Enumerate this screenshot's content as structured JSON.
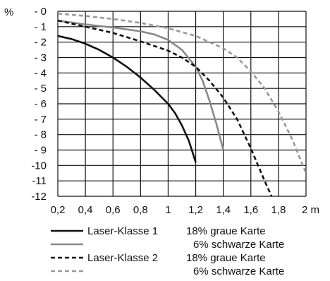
{
  "chart_data": {
    "type": "line",
    "title": "",
    "xlabel": "m",
    "ylabel": "%",
    "xlim": [
      0.2,
      2.0
    ],
    "ylim": [
      -12,
      0
    ],
    "x_ticks": [
      "0,2",
      "0,4",
      "0,6",
      "0,8",
      "1",
      "1,2",
      "1,4",
      "1,6",
      "1,8",
      "2 m"
    ],
    "y_ticks": [
      "- 0",
      "- 1",
      "- 2",
      "- 3",
      "- 4",
      "- 5",
      "- 6",
      "- 7",
      "- 8",
      "- 9",
      "-10",
      "-11",
      "-12"
    ],
    "y_unit": "%",
    "grid": true,
    "legend_placement": "bottom",
    "series": [
      {
        "name": "Laser-Klasse 1",
        "description": "18% graue Karte",
        "color": "#111111",
        "style": "solid",
        "points": [
          [
            0.2,
            -1.6
          ],
          [
            0.3,
            -1.8
          ],
          [
            0.4,
            -2.1
          ],
          [
            0.5,
            -2.5
          ],
          [
            0.6,
            -3.0
          ],
          [
            0.7,
            -3.6
          ],
          [
            0.8,
            -4.3
          ],
          [
            0.9,
            -5.1
          ],
          [
            1.0,
            -6.0
          ],
          [
            1.05,
            -6.6
          ],
          [
            1.1,
            -7.4
          ],
          [
            1.15,
            -8.4
          ],
          [
            1.2,
            -9.8
          ]
        ]
      },
      {
        "name": "",
        "description": "6% schwarze Karte",
        "color": "#888888",
        "style": "solid",
        "points": [
          [
            0.2,
            -0.6
          ],
          [
            0.4,
            -0.85
          ],
          [
            0.6,
            -1.05
          ],
          [
            0.8,
            -1.3
          ],
          [
            0.9,
            -1.5
          ],
          [
            1.0,
            -1.85
          ],
          [
            1.1,
            -2.5
          ],
          [
            1.2,
            -3.6
          ],
          [
            1.25,
            -4.5
          ],
          [
            1.3,
            -5.8
          ],
          [
            1.35,
            -7.3
          ],
          [
            1.4,
            -9.0
          ]
        ]
      },
      {
        "name": "Laser-Klasse 2",
        "description": "18% graue Karte",
        "color": "#111111",
        "style": "dashed",
        "points": [
          [
            0.2,
            -0.6
          ],
          [
            0.4,
            -1.0
          ],
          [
            0.6,
            -1.4
          ],
          [
            0.8,
            -1.95
          ],
          [
            1.0,
            -2.55
          ],
          [
            1.1,
            -3.0
          ],
          [
            1.2,
            -3.6
          ],
          [
            1.3,
            -4.5
          ],
          [
            1.4,
            -5.6
          ],
          [
            1.5,
            -7.0
          ],
          [
            1.6,
            -8.9
          ],
          [
            1.7,
            -11.0
          ],
          [
            1.75,
            -12.0
          ]
        ]
      },
      {
        "name": "",
        "description": "6% schwarze Karte",
        "color": "#999999",
        "style": "dashed",
        "points": [
          [
            0.2,
            -0.15
          ],
          [
            0.4,
            -0.3
          ],
          [
            0.6,
            -0.5
          ],
          [
            0.8,
            -0.75
          ],
          [
            1.0,
            -1.1
          ],
          [
            1.2,
            -1.6
          ],
          [
            1.4,
            -2.4
          ],
          [
            1.5,
            -3.0
          ],
          [
            1.6,
            -3.9
          ],
          [
            1.7,
            -5.0
          ],
          [
            1.8,
            -6.5
          ],
          [
            1.9,
            -8.3
          ],
          [
            2.0,
            -10.5
          ]
        ]
      }
    ]
  },
  "legend": {
    "items": [
      {
        "label": "Laser-Klasse 1",
        "desc": "18% graue Karte"
      },
      {
        "label": "",
        "desc": "6% schwarze Karte"
      },
      {
        "label": "Laser-Klasse 2",
        "desc": "18% graue Karte"
      },
      {
        "label": "",
        "desc": "6% schwarze Karte"
      }
    ]
  }
}
